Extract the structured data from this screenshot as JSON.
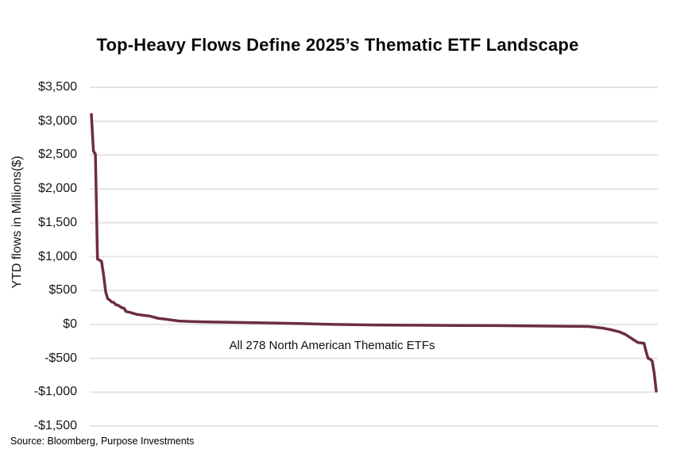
{
  "chart_data": {
    "type": "line",
    "title": "Top-Heavy Flows Define 2025’s Thematic ETF Landscape",
    "xlabel": "",
    "ylabel": "YTD flows in Millions($)",
    "annotation": "All 278 North American Thematic ETFs",
    "source": "Source: Bloomberg, Purpose Investments",
    "x_meaning": "ETF rank by YTD flows, sorted descending",
    "n_points": 278,
    "ylim": [
      -1500,
      3500
    ],
    "ytick_step": 500,
    "ytick_labels": [
      "$3,500",
      "$3,000",
      "$2,500",
      "$2,000",
      "$1,500",
      "$1,000",
      "$500",
      "$0",
      "-$500",
      "-$1,000",
      "-$1,500"
    ],
    "grid": "horizontal",
    "legend": "none",
    "line_color": "#6E2C44",
    "grid_color": "#E4E4E4",
    "background": "#FFFFFF",
    "series": [
      {
        "name": "YTD flows ($M)",
        "points": [
          [
            1,
            3100
          ],
          [
            2,
            2560
          ],
          [
            3,
            2510
          ],
          [
            4,
            965
          ],
          [
            5,
            950
          ],
          [
            6,
            930
          ],
          [
            7,
            730
          ],
          [
            8,
            480
          ],
          [
            9,
            380
          ],
          [
            10,
            360
          ],
          [
            11,
            330
          ],
          [
            12,
            325
          ],
          [
            13,
            290
          ],
          [
            14,
            285
          ],
          [
            16,
            245
          ],
          [
            17,
            240
          ],
          [
            18,
            190
          ],
          [
            20,
            178
          ],
          [
            21,
            168
          ],
          [
            23,
            150
          ],
          [
            25,
            142
          ],
          [
            27,
            132
          ],
          [
            29,
            127
          ],
          [
            31,
            112
          ],
          [
            34,
            88
          ],
          [
            36,
            82
          ],
          [
            39,
            70
          ],
          [
            41,
            62
          ],
          [
            44,
            50
          ],
          [
            50,
            42
          ],
          [
            58,
            36
          ],
          [
            70,
            30
          ],
          [
            81,
            26
          ],
          [
            95,
            17
          ],
          [
            110,
            8
          ],
          [
            120,
            0
          ],
          [
            140,
            -8
          ],
          [
            159,
            -12
          ],
          [
            180,
            -15
          ],
          [
            198,
            -18
          ],
          [
            220,
            -24
          ],
          [
            245,
            -30
          ],
          [
            252,
            -55
          ],
          [
            256,
            -80
          ],
          [
            260,
            -110
          ],
          [
            263,
            -150
          ],
          [
            265,
            -190
          ],
          [
            267,
            -230
          ],
          [
            269,
            -267
          ],
          [
            272,
            -278
          ],
          [
            273,
            -400
          ],
          [
            274,
            -500
          ],
          [
            275,
            -512
          ],
          [
            276,
            -540
          ],
          [
            277,
            -715
          ],
          [
            278,
            -985
          ]
        ]
      }
    ]
  }
}
